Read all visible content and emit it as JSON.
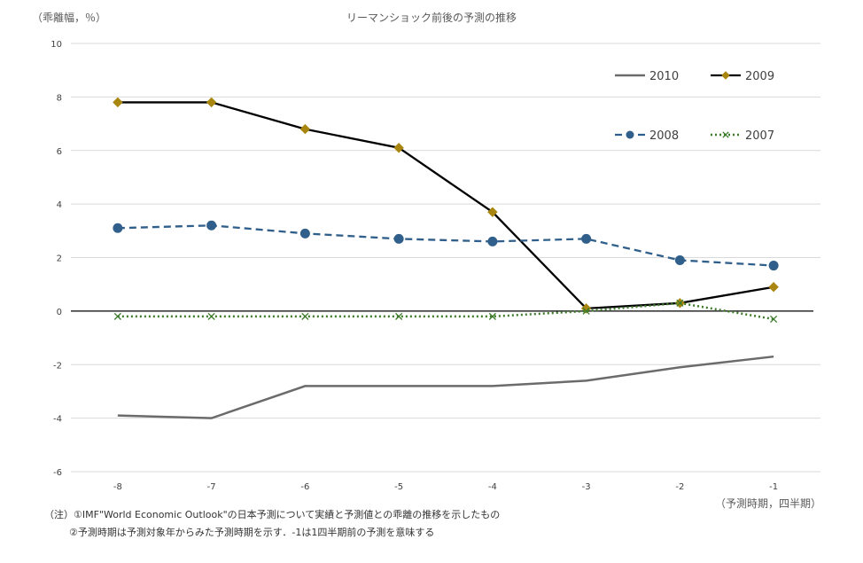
{
  "chart_data": {
    "type": "line",
    "title": "リーマンショック前後の予測の推移",
    "ylabel": "（乖離幅，％）",
    "xlabel": "（予測時期，四半期）",
    "x": [
      -8,
      -7,
      -6,
      -5,
      -4,
      -3,
      -2,
      -1
    ],
    "xtick_labels": [
      "-8",
      "-7",
      "-6",
      "-5",
      "-4",
      "-3",
      "-2",
      "-1"
    ],
    "ylim": [
      -6,
      10
    ],
    "yticks": [
      -6,
      -4,
      -2,
      0,
      2,
      4,
      6,
      8,
      10
    ],
    "grid": true,
    "legend_position": "top-right",
    "series": [
      {
        "name": "2010",
        "values": [
          -3.9,
          -4.0,
          -2.8,
          -2.8,
          -2.8,
          -2.6,
          -2.1,
          -1.7
        ],
        "color": "#6b6b6b",
        "line_style": "solid",
        "marker": "none"
      },
      {
        "name": "2009",
        "values": [
          7.8,
          7.8,
          6.8,
          6.1,
          3.7,
          0.1,
          0.3,
          0.9
        ],
        "color": "#000000",
        "marker_color": "#a8860f",
        "line_style": "solid",
        "marker": "diamond"
      },
      {
        "name": "2008",
        "values": [
          3.1,
          3.2,
          2.9,
          2.7,
          2.6,
          2.7,
          1.9,
          1.7
        ],
        "color": "#2f5f8a",
        "line_style": "dashed",
        "marker": "circle"
      },
      {
        "name": "2007",
        "values": [
          -0.2,
          -0.2,
          -0.2,
          -0.2,
          -0.2,
          0.0,
          0.3,
          -0.3
        ],
        "color": "#3d7a2a",
        "line_style": "dotted",
        "marker": "x"
      }
    ]
  },
  "notes": {
    "note1": "（注）①IMF\"World Economic Outlook\"の日本予測について実績と予測値との乖離の推移を示したもの",
    "note2": "②予測時期は予測対象年からみた予測時期を示す．-1は1四半期前の予測を意味する"
  }
}
